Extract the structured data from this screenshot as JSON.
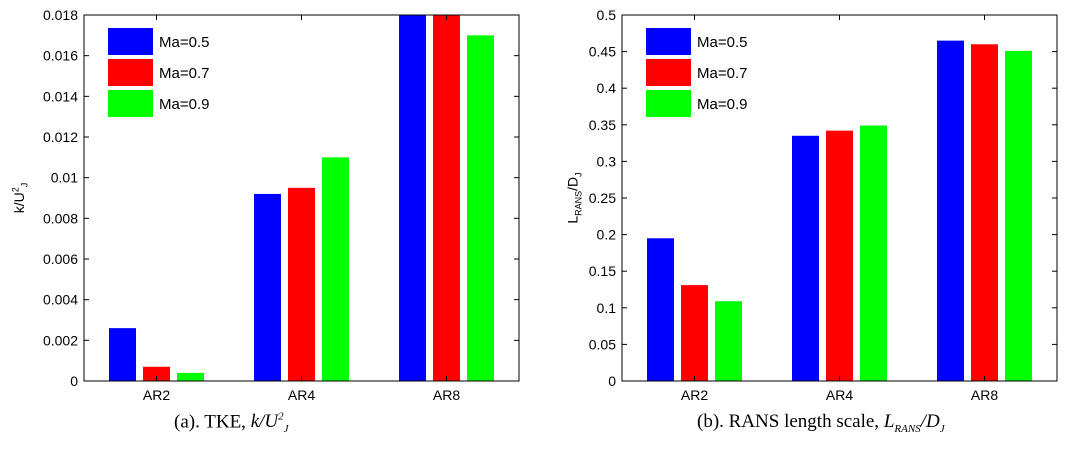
{
  "chart_data": [
    {
      "type": "bar",
      "categories": [
        "AR2",
        "AR4",
        "AR8"
      ],
      "series": [
        {
          "name": "Ma=0.5",
          "color": "#0000ff",
          "values": [
            0.0026,
            0.0092,
            0.018
          ]
        },
        {
          "name": "Ma=0.7",
          "color": "#ff0000",
          "values": [
            0.0007,
            0.0095,
            0.018
          ]
        },
        {
          "name": "Ma=0.9",
          "color": "#00ff00",
          "values": [
            0.0004,
            0.011,
            0.017
          ]
        }
      ],
      "ylim": [
        0,
        0.018
      ],
      "yticks": [
        "0",
        "0.002",
        "0.004",
        "0.006",
        "0.008",
        "0.01",
        "0.012",
        "0.014",
        "0.016",
        "0.018"
      ],
      "ylabel": {
        "main": "k/U",
        "sup": "2",
        "sub": "J"
      },
      "legend": "top-left",
      "grid": false,
      "caption": {
        "prefix": "(a). TKE,",
        "num": "k",
        "den": "U",
        "sup": "2",
        "sub": "J"
      }
    },
    {
      "type": "bar",
      "categories": [
        "AR2",
        "AR4",
        "AR8"
      ],
      "series": [
        {
          "name": "Ma=0.5",
          "color": "#0000ff",
          "values": [
            0.195,
            0.335,
            0.465
          ]
        },
        {
          "name": "Ma=0.7",
          "color": "#ff0000",
          "values": [
            0.131,
            0.342,
            0.46
          ]
        },
        {
          "name": "Ma=0.9",
          "color": "#00ff00",
          "values": [
            0.109,
            0.349,
            0.451
          ]
        }
      ],
      "ylim": [
        0,
        0.5
      ],
      "yticks": [
        "0",
        "0.05",
        "0.1",
        "0.15",
        "0.2",
        "0.25",
        "0.3",
        "0.35",
        "0.4",
        "0.45",
        "0.5"
      ],
      "ylabel": {
        "main": "L",
        "sub": "RANS",
        "after": "/D",
        "sub2": "J"
      },
      "legend": "top-left",
      "grid": false,
      "caption": {
        "prefix": "(b). RANS length scale,",
        "num": "L",
        "num_sub": "RANS",
        "den": "D",
        "den_sub": "J"
      }
    }
  ]
}
